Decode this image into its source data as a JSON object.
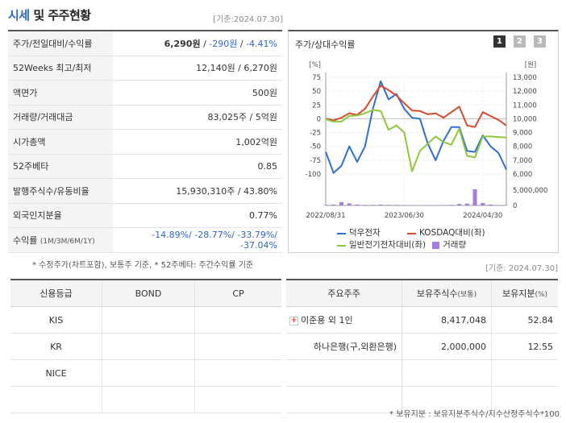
{
  "header": {
    "title_highlight": "시세",
    "title_rest": " 및 주주현황",
    "base_date": "[기준:2024.07.30]"
  },
  "quote": {
    "rows": {
      "price": {
        "label": "주가/전일대비/수익률",
        "price": "6,290원",
        "change": "-290원",
        "rate": "-4.41%"
      },
      "weeks52": {
        "label": "52Weeks 최고/최저",
        "value": "12,140원 / 6,270원"
      },
      "par": {
        "label": "액면가",
        "value": "500원"
      },
      "volume": {
        "label": "거래량/거래대금",
        "value": "83,025주 / 5억원"
      },
      "mcap": {
        "label": "시가총액",
        "value": "1,002억원"
      },
      "beta": {
        "label": "52주베타",
        "value": "0.85"
      },
      "shares": {
        "label": "발행주식수/유동비율",
        "value": "15,930,310주 / 43.80%"
      },
      "foreign": {
        "label": "외국인지분율",
        "value": "0.77%"
      },
      "returns": {
        "label": "수익률",
        "label_small": "(1M/3M/6M/1Y)",
        "value": "-14.89%/ -28.77%/ -33.79%/ -37.04%"
      }
    }
  },
  "chart_panel": {
    "title": "주가/상대수익률",
    "pages": [
      "1",
      "2",
      "3"
    ],
    "active_page": "1"
  },
  "chart_data": {
    "type": "line",
    "left_axis_unit": "[%]",
    "right_axis_unit": "[원]",
    "left_ticks": [
      "75",
      "50",
      "25",
      "0",
      "-25",
      "-50",
      "-75",
      "-100"
    ],
    "left_values": [
      75,
      50,
      25,
      0,
      -25,
      -50,
      -75,
      -100
    ],
    "ylim_left": [
      -100,
      75
    ],
    "right_ticks": [
      "13,000",
      "12,000",
      "11,000",
      "10,000",
      "9,000",
      "8,000",
      "7,000",
      "6,000"
    ],
    "right_values": [
      13000,
      12000,
      11000,
      10000,
      9000,
      8000,
      7000,
      6000
    ],
    "vol_ticks": [
      "5,000,000",
      "0"
    ],
    "vol_values": [
      5000000,
      0
    ],
    "x_ticks": [
      "2022/08/31",
      "2023/06/30",
      "2024/04/30"
    ],
    "x_tick_index": [
      0,
      10,
      20
    ],
    "x_count": 24,
    "grid": true,
    "series": [
      {
        "name": "덕우전자",
        "color": "#2f6fd1",
        "axis": "left",
        "values": [
          -60,
          -98,
          -85,
          -50,
          -78,
          -50,
          18,
          68,
          35,
          45,
          18,
          2,
          0,
          -45,
          -75,
          -40,
          -15,
          -15,
          -58,
          -60,
          -30,
          -50,
          -62,
          -92
        ]
      },
      {
        "name": "KOSDAQ대비(좌)",
        "color": "#d84a2c",
        "axis": "left",
        "values": [
          0,
          -3,
          2,
          10,
          7,
          18,
          40,
          60,
          52,
          42,
          28,
          15,
          14,
          8,
          10,
          2,
          12,
          22,
          -12,
          -15,
          12,
          5,
          -2,
          -12
        ]
      },
      {
        "name": "일반전기전자대비(좌)",
        "color": "#8dc63f",
        "axis": "left",
        "values": [
          -1,
          -5,
          -5,
          5,
          6,
          10,
          16,
          14,
          -20,
          -12,
          -25,
          -95,
          -58,
          -45,
          -32,
          -42,
          -47,
          -18,
          -67,
          -70,
          -32,
          -32,
          -33,
          -34
        ]
      },
      {
        "name": "거래량",
        "color": "#a37ee0",
        "axis": "volume",
        "values": [
          200000,
          300000,
          1100000,
          700000,
          300000,
          200000,
          200000,
          300000,
          200000,
          200000,
          150000,
          100000,
          100000,
          100000,
          100000,
          150000,
          200000,
          500000,
          600000,
          5300000,
          800000,
          300000,
          150000,
          100000
        ]
      }
    ]
  },
  "footnote": "* 수정주가(차트포함), 보통주 기준, * 52주베타: 주간수익률 기준",
  "base_date_mid": "[기준: 2024.07.30]",
  "credit": {
    "headers": [
      "신용등급",
      "BOND",
      "CP"
    ],
    "rows": [
      {
        "agency": "KIS",
        "bond": "",
        "cp": ""
      },
      {
        "agency": "KR",
        "bond": "",
        "cp": ""
      },
      {
        "agency": "NICE",
        "bond": "",
        "cp": ""
      },
      {
        "agency": "",
        "bond": "",
        "cp": ""
      }
    ]
  },
  "holders": {
    "headers": [
      "주요주주",
      "보유주식수",
      "(보통)",
      "보유지분",
      "(%)"
    ],
    "rows": [
      {
        "name": "이준용 외 1인",
        "shares": "8,417,048",
        "pct": "52.84",
        "expand": true
      },
      {
        "name": "하나은행(구,외환은행)",
        "shares": "2,000,000",
        "pct": "12.55",
        "expand": false
      },
      {
        "name": "",
        "shares": "",
        "pct": "",
        "expand": false
      },
      {
        "name": "",
        "shares": "",
        "pct": "",
        "expand": false
      }
    ],
    "note": "* 보유지분 : 보유지분주식수/지수산정주식수*100"
  },
  "colors": {
    "accent": "#2f66c9",
    "negative": "#2f66c9",
    "header_border": "#555555"
  }
}
